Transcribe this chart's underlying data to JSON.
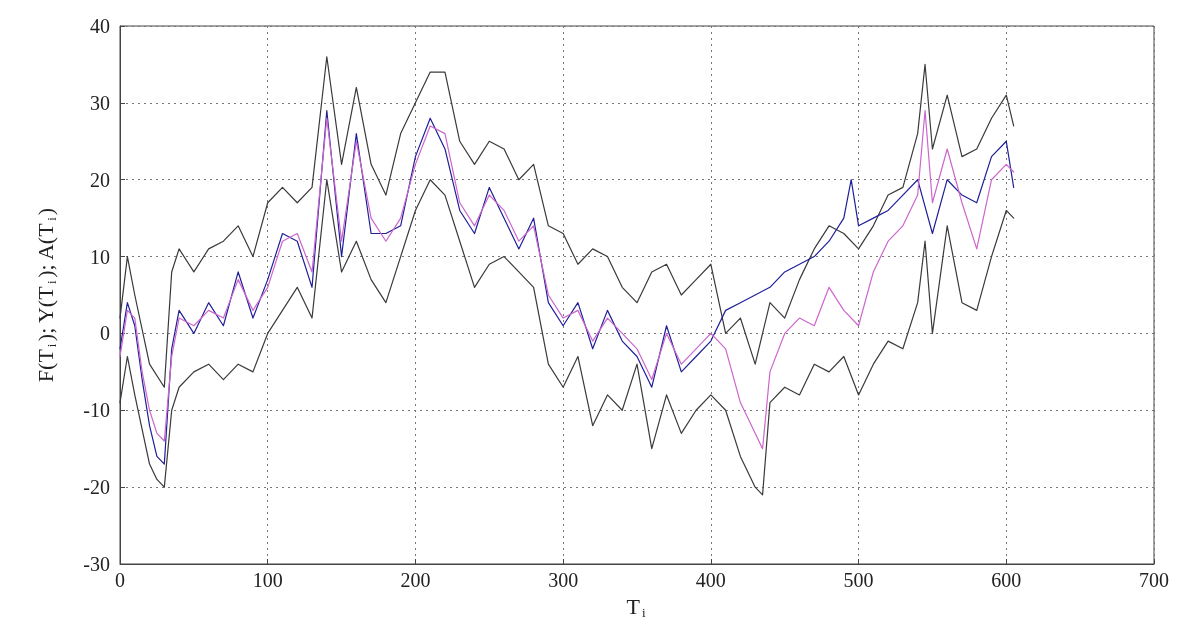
{
  "chart_data": {
    "type": "line",
    "xlabel": "T$_{i}$",
    "ylabel": "F(T$_{i}$); Y(T$_{i}$); A(T$_{i}$)",
    "xlim": [
      0,
      700
    ],
    "xticks": [
      0,
      100,
      200,
      300,
      400,
      500,
      600,
      700
    ],
    "ylim": [
      -30,
      40
    ],
    "yticks": [
      -30,
      -20,
      -10,
      0,
      10,
      20,
      30,
      40
    ],
    "grid": true,
    "marker": "none",
    "line_style": "solid",
    "series": [
      {
        "color": "#3a3a3a",
        "x": [
          0,
          5,
          10,
          20,
          30,
          35,
          40,
          50,
          60,
          70,
          80,
          90,
          100,
          110,
          120,
          130,
          140,
          150,
          160,
          170,
          180,
          190,
          200,
          210,
          220,
          230,
          240,
          250,
          260,
          270,
          280,
          290,
          300,
          310,
          320,
          330,
          340,
          350,
          360,
          370,
          380,
          390,
          400,
          410,
          420,
          430,
          440,
          450,
          460,
          470,
          480,
          490,
          500,
          510,
          520,
          530,
          540,
          545,
          550,
          560,
          570,
          580,
          590,
          600,
          605
        ],
        "values": [
          2,
          10,
          5,
          -4,
          -7,
          8,
          11,
          8,
          11,
          12,
          14,
          10,
          17,
          19,
          17,
          19,
          36,
          22,
          32,
          22,
          18,
          26,
          30,
          34,
          34,
          25,
          22,
          25,
          24,
          20,
          22,
          14,
          13,
          9,
          11,
          10,
          6,
          4,
          8,
          9,
          5,
          7,
          9,
          0,
          2,
          -4,
          4,
          2,
          7,
          11,
          14,
          13,
          11,
          14,
          18,
          19,
          26,
          35,
          24,
          31,
          23,
          24,
          28,
          31,
          27
        ]
      },
      {
        "color": "#3a3a3a",
        "x": [
          0,
          5,
          10,
          20,
          25,
          30,
          35,
          40,
          50,
          60,
          70,
          80,
          90,
          100,
          110,
          120,
          130,
          140,
          150,
          160,
          170,
          180,
          190,
          200,
          210,
          220,
          230,
          240,
          250,
          260,
          270,
          280,
          290,
          300,
          310,
          320,
          330,
          340,
          350,
          360,
          370,
          380,
          390,
          400,
          410,
          420,
          430,
          435,
          440,
          450,
          460,
          470,
          480,
          490,
          500,
          510,
          520,
          530,
          540,
          545,
          550,
          560,
          570,
          580,
          590,
          600,
          605
        ],
        "values": [
          -9,
          -3,
          -8,
          -17,
          -19,
          -20,
          -10,
          -7,
          -5,
          -4,
          -6,
          -4,
          -5,
          0,
          3,
          6,
          2,
          20,
          8,
          12,
          7,
          4,
          10,
          16,
          20,
          18,
          12,
          6,
          9,
          10,
          8,
          6,
          -4,
          -7,
          -3,
          -12,
          -8,
          -10,
          -4,
          -15,
          -8,
          -13,
          -10,
          -8,
          -10,
          -16,
          -20,
          -21,
          -9,
          -7,
          -8,
          -4,
          -5,
          -3,
          -8,
          -4,
          -1,
          -2,
          4,
          12,
          0,
          14,
          4,
          3,
          10,
          16,
          15
        ]
      },
      {
        "color": "#1f1f99",
        "x": [
          0,
          5,
          10,
          15,
          20,
          25,
          30,
          35,
          40,
          50,
          60,
          70,
          80,
          90,
          100,
          110,
          120,
          130,
          140,
          150,
          160,
          170,
          180,
          190,
          200,
          210,
          220,
          230,
          240,
          250,
          260,
          270,
          280,
          290,
          300,
          310,
          320,
          330,
          340,
          350,
          360,
          370,
          380,
          390,
          400,
          410,
          420,
          430,
          440,
          450,
          460,
          470,
          480,
          490,
          495,
          500,
          510,
          520,
          530,
          540,
          550,
          560,
          570,
          580,
          590,
          600,
          605
        ],
        "values": [
          -2,
          4,
          1,
          -6,
          -12,
          -16,
          -17,
          -2,
          3,
          0,
          4,
          1,
          8,
          2,
          7,
          13,
          12,
          6,
          29,
          10,
          26,
          13,
          13,
          14,
          23,
          28,
          24,
          16,
          13,
          19,
          15,
          11,
          15,
          4,
          1,
          4,
          -2,
          3,
          -1,
          -3,
          -7,
          1,
          -5,
          -3,
          -1,
          3,
          4,
          5,
          6,
          8,
          9,
          10,
          12,
          15,
          20,
          14,
          15,
          16,
          18,
          20,
          13,
          20,
          18,
          17,
          23,
          25,
          19
        ]
      },
      {
        "color": "#cc66cc",
        "x": [
          0,
          5,
          10,
          15,
          20,
          25,
          30,
          35,
          40,
          50,
          60,
          70,
          80,
          90,
          100,
          110,
          120,
          130,
          140,
          150,
          160,
          170,
          180,
          190,
          200,
          210,
          220,
          230,
          240,
          250,
          260,
          270,
          280,
          290,
          300,
          310,
          320,
          330,
          340,
          350,
          360,
          370,
          380,
          390,
          400,
          410,
          420,
          430,
          435,
          440,
          450,
          460,
          470,
          480,
          490,
          500,
          510,
          520,
          530,
          540,
          545,
          550,
          560,
          570,
          580,
          590,
          600,
          605
        ],
        "values": [
          -3,
          3,
          2,
          -5,
          -10,
          -13,
          -14,
          -3,
          2,
          1,
          3,
          2,
          7,
          3,
          6,
          12,
          13,
          8,
          28,
          12,
          25,
          15,
          12,
          15,
          22,
          27,
          26,
          17,
          14,
          18,
          16,
          12,
          14,
          5,
          2,
          3,
          -1,
          2,
          0,
          -2,
          -6,
          0,
          -4,
          -2,
          0,
          -2,
          -9,
          -13,
          -15,
          -5,
          0,
          2,
          1,
          6,
          3,
          1,
          8,
          12,
          14,
          18,
          29,
          17,
          24,
          17,
          11,
          20,
          22,
          21
        ]
      }
    ]
  }
}
